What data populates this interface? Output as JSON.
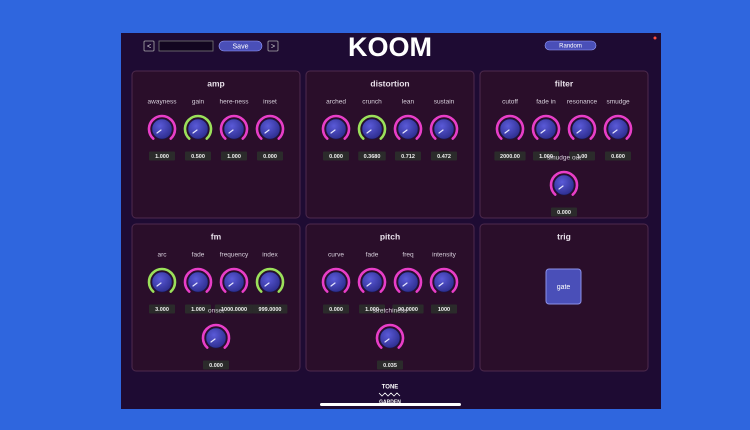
{
  "header": {
    "prev": "<",
    "save": "Save",
    "next": ">",
    "title": "KOOM",
    "random": "Random"
  },
  "panels": [
    {
      "title": "amp",
      "knobs": [
        {
          "label": "awayness",
          "value": "1.000",
          "color": "#e83ec8"
        },
        {
          "label": "gain",
          "value": "0.500",
          "color": "#9be05a"
        },
        {
          "label": "here-ness",
          "value": "1.000",
          "color": "#e83ec8"
        },
        {
          "label": "inset",
          "value": "0.000",
          "color": "#e83ec8"
        }
      ]
    },
    {
      "title": "distortion",
      "knobs": [
        {
          "label": "arched",
          "value": "0.000",
          "color": "#e83ec8"
        },
        {
          "label": "crunch",
          "value": "0.3680",
          "color": "#9be05a"
        },
        {
          "label": "lean",
          "value": "0.712",
          "color": "#e83ec8"
        },
        {
          "label": "sustain",
          "value": "0.472",
          "color": "#e83ec8"
        }
      ]
    },
    {
      "title": "filter",
      "knobs": [
        {
          "label": "cutoff",
          "value": "2000.00",
          "color": "#e83ec8"
        },
        {
          "label": "fade in",
          "value": "1.000",
          "color": "#e83ec8"
        },
        {
          "label": "resonance",
          "value": "1.00",
          "color": "#e83ec8"
        },
        {
          "label": "smudge",
          "value": "0.600",
          "color": "#e83ec8"
        },
        {
          "label": "smudge out",
          "value": "0.000",
          "color": "#e83ec8"
        }
      ]
    },
    {
      "title": "fm",
      "knobs": [
        {
          "label": "arc",
          "value": "3.000",
          "color": "#9be05a"
        },
        {
          "label": "fade",
          "value": "1.000",
          "color": "#e83ec8"
        },
        {
          "label": "frequency",
          "value": "1000.0000",
          "color": "#e83ec8"
        },
        {
          "label": "index",
          "value": "999.0000",
          "color": "#9be05a"
        },
        {
          "label": "onset",
          "value": "0.000",
          "color": "#e83ec8"
        }
      ]
    },
    {
      "title": "pitch",
      "knobs": [
        {
          "label": "curve",
          "value": "0.000",
          "color": "#e83ec8"
        },
        {
          "label": "fade",
          "value": "1.000",
          "color": "#e83ec8"
        },
        {
          "label": "freq",
          "value": "90.0000",
          "color": "#e83ec8"
        },
        {
          "label": "intensity",
          "value": "1000",
          "color": "#e83ec8"
        },
        {
          "label": "stretchiness",
          "value": "0.035",
          "color": "#e83ec8"
        }
      ]
    },
    {
      "title": "trig",
      "button": "gate"
    }
  ],
  "footer": {
    "logo_top": "TONE",
    "logo_bottom": "GARDEN"
  }
}
